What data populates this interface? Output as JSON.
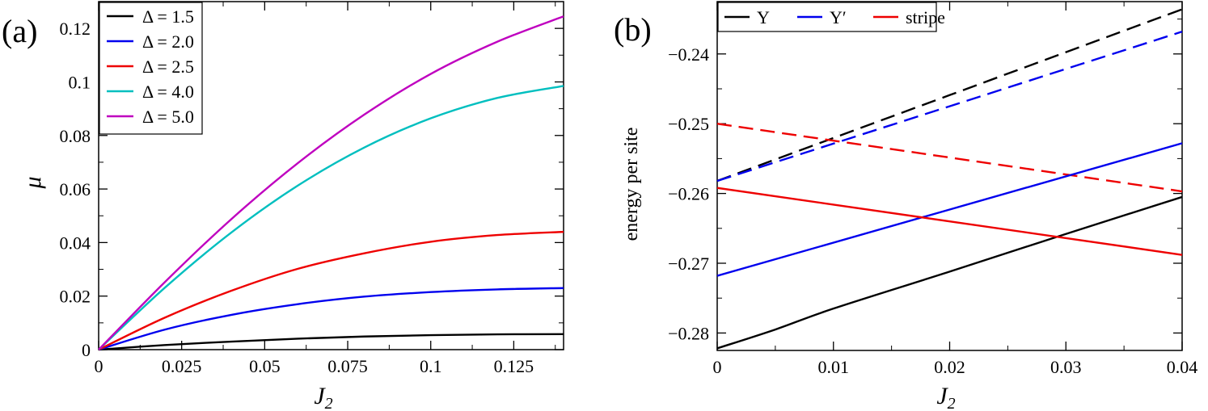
{
  "chart_data": [
    {
      "type": "line",
      "panel_label": "(a)",
      "xlabel": "J",
      "xlabel_sub": "2",
      "ylabel": "μ",
      "xlim": [
        0,
        0.14
      ],
      "ylim": [
        0,
        0.13
      ],
      "xticks": [
        0,
        0.025,
        0.05,
        0.075,
        0.1,
        0.125
      ],
      "xtick_labels": [
        "0",
        "0.025",
        "0.05",
        "0.075",
        "0.1",
        "0.125"
      ],
      "yticks": [
        0,
        0.02,
        0.04,
        0.06,
        0.08,
        0.1,
        0.12
      ],
      "ytick_labels": [
        "0",
        "0.02",
        "0.04",
        "0.06",
        "0.08",
        "0.1",
        "0.12"
      ],
      "legend_position": "top-left",
      "series": [
        {
          "name": "Δ = 1.5",
          "color": "#000000",
          "dashed": false,
          "x": [
            0,
            0.02,
            0.04,
            0.06,
            0.08,
            0.1,
            0.12,
            0.14
          ],
          "y": [
            0,
            0.0017,
            0.003,
            0.0041,
            0.0049,
            0.0054,
            0.0057,
            0.0058
          ]
        },
        {
          "name": "Δ = 2.0",
          "color": "#0000ee",
          "dashed": false,
          "x": [
            0,
            0.02,
            0.04,
            0.06,
            0.08,
            0.1,
            0.12,
            0.14
          ],
          "y": [
            0,
            0.0075,
            0.013,
            0.017,
            0.0198,
            0.0215,
            0.0225,
            0.023
          ]
        },
        {
          "name": "Δ = 2.5",
          "color": "#ee0000",
          "dashed": false,
          "x": [
            0,
            0.02,
            0.04,
            0.06,
            0.08,
            0.1,
            0.12,
            0.14
          ],
          "y": [
            0,
            0.012,
            0.022,
            0.0302,
            0.036,
            0.0403,
            0.0428,
            0.044
          ]
        },
        {
          "name": "Δ = 4.0",
          "color": "#00bfbf",
          "dashed": false,
          "x": [
            0,
            0.02,
            0.04,
            0.06,
            0.08,
            0.1,
            0.12,
            0.14
          ],
          "y": [
            0,
            0.0232,
            0.0438,
            0.0613,
            0.0755,
            0.0864,
            0.094,
            0.0985
          ]
        },
        {
          "name": "Δ = 5.0",
          "color": "#bf00bf",
          "dashed": false,
          "x": [
            0,
            0.02,
            0.04,
            0.06,
            0.08,
            0.1,
            0.12,
            0.14
          ],
          "y": [
            0,
            0.0253,
            0.0488,
            0.0697,
            0.0878,
            0.103,
            0.115,
            0.1245
          ]
        }
      ]
    },
    {
      "type": "line",
      "panel_label": "(b)",
      "xlabel": "J",
      "xlabel_sub": "2",
      "ylabel": "energy per site",
      "xlim": [
        0,
        0.04
      ],
      "ylim": [
        -0.2825,
        -0.2325
      ],
      "xticks": [
        0,
        0.01,
        0.02,
        0.03,
        0.04
      ],
      "xtick_labels": [
        "0",
        "0.01",
        "0.02",
        "0.03",
        "0.04"
      ],
      "yticks": [
        -0.28,
        -0.27,
        -0.26,
        -0.25,
        -0.24
      ],
      "ytick_labels": [
        "−0.28",
        "−0.27",
        "−0.26",
        "−0.25",
        "−0.24"
      ],
      "legend_position": "top-left",
      "legend": [
        {
          "name": "Y",
          "color": "#000000"
        },
        {
          "name": "Y′",
          "color": "#0000ee"
        },
        {
          "name": "stripe",
          "color": "#ee0000"
        }
      ],
      "series": [
        {
          "name": "Y (dashed)",
          "color": "#000000",
          "dashed": true,
          "x": [
            0,
            0.04
          ],
          "y": [
            -0.2582,
            -0.2336
          ]
        },
        {
          "name": "Y′ (dashed)",
          "color": "#0000ee",
          "dashed": true,
          "x": [
            0,
            0.04
          ],
          "y": [
            -0.2582,
            -0.2368
          ]
        },
        {
          "name": "stripe (dashed)",
          "color": "#ee0000",
          "dashed": true,
          "x": [
            0,
            0.04
          ],
          "y": [
            -0.25,
            -0.2597
          ]
        },
        {
          "name": "Y",
          "color": "#000000",
          "dashed": false,
          "x": [
            0,
            0.005,
            0.01,
            0.02,
            0.03,
            0.04
          ],
          "y": [
            -0.2822,
            -0.2795,
            -0.2765,
            -0.2712,
            -0.2658,
            -0.2605
          ]
        },
        {
          "name": "Y′",
          "color": "#0000ee",
          "dashed": false,
          "x": [
            0,
            0.04
          ],
          "y": [
            -0.2718,
            -0.2528
          ]
        },
        {
          "name": "stripe",
          "color": "#ee0000",
          "dashed": false,
          "x": [
            0,
            0.04
          ],
          "y": [
            -0.2592,
            -0.2688
          ]
        }
      ]
    }
  ]
}
